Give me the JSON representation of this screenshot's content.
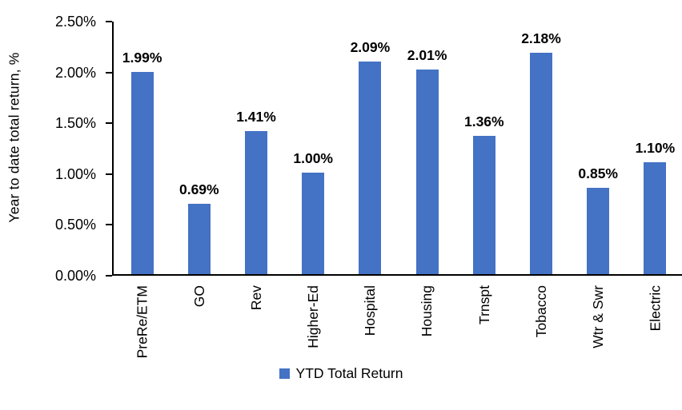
{
  "chart_data": {
    "type": "bar",
    "title": "",
    "ylabel": "Year to date total return, %",
    "xlabel": "",
    "categories": [
      "PreRe/ETM",
      "GO",
      "Rev",
      "Higher-Ed",
      "Hospital",
      "Housing",
      "Trnspt",
      "Tobacco",
      "Wtr & Swr",
      "Electric"
    ],
    "values": [
      1.99,
      0.69,
      1.41,
      1.0,
      2.09,
      2.01,
      1.36,
      2.18,
      0.85,
      1.1
    ],
    "data_labels": [
      "1.99%",
      "0.69%",
      "1.41%",
      "1.00%",
      "2.09%",
      "2.01%",
      "1.36%",
      "2.18%",
      "0.85%",
      "1.10%"
    ],
    "ylim": [
      0,
      2.5
    ],
    "ytick_step": 0.5,
    "ytick_labels": [
      "0.00%",
      "0.50%",
      "1.00%",
      "1.50%",
      "2.00%",
      "2.50%"
    ],
    "grid": false,
    "legend_position": "bottom",
    "legend": [
      {
        "label": "YTD Total Return",
        "color": "#4472C4"
      }
    ],
    "bar_color": "#4472C4",
    "axis_color": "#000000",
    "text_color": "#000000"
  }
}
